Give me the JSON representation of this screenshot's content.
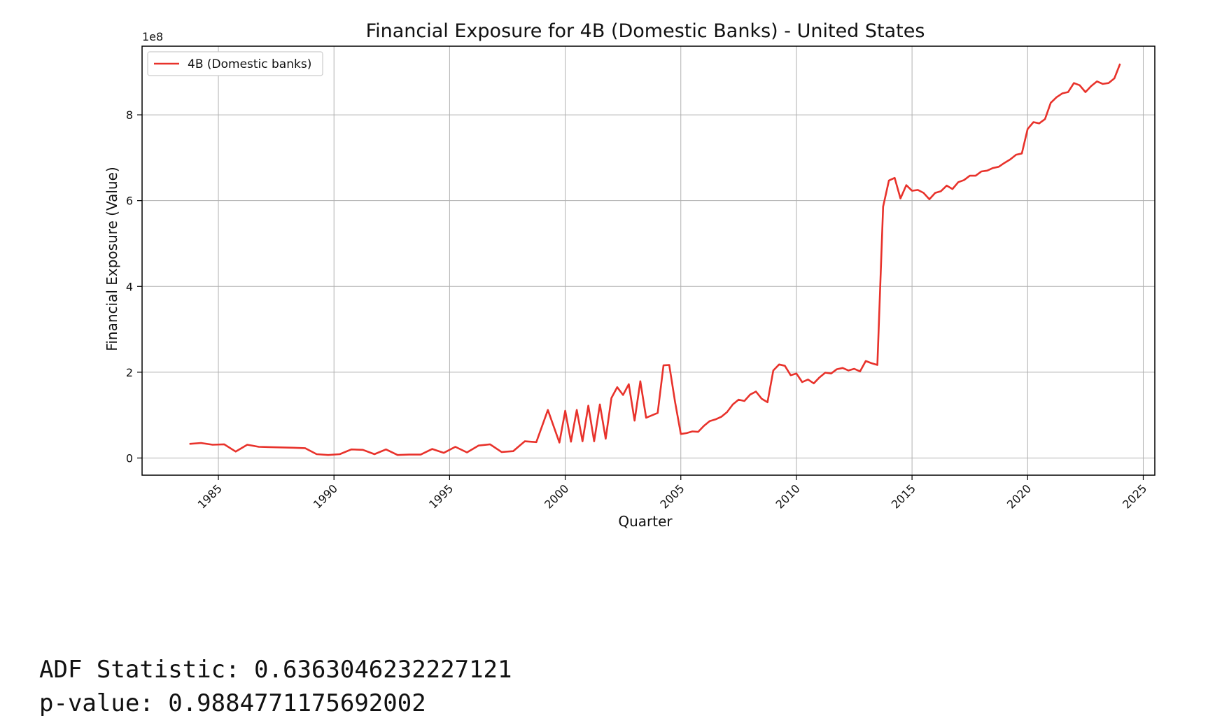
{
  "chart_data": {
    "type": "line",
    "title": "Financial Exposure for 4B (Domestic Banks) - United States",
    "xlabel": "Quarter",
    "ylabel": "Financial Exposure (Value)",
    "y_scale_label": "1e8",
    "y_multiplier": 100000000,
    "xlim": [
      1981.7,
      2025.5
    ],
    "ylim": [
      -0.4,
      9.6
    ],
    "x_ticks": [
      1985,
      1990,
      1995,
      2000,
      2005,
      2010,
      2015,
      2020,
      2025
    ],
    "y_ticks": [
      0,
      2,
      4,
      6,
      8
    ],
    "x_tick_labels": [
      "1985",
      "1990",
      "1995",
      "2000",
      "2005",
      "2010",
      "2015",
      "2020",
      "2025"
    ],
    "y_tick_labels": [
      "0",
      "2",
      "4",
      "6",
      "8"
    ],
    "grid": true,
    "legend_position": "top-left",
    "series": [
      {
        "name": "4B (Domestic banks)",
        "color": "#e8322b",
        "x": [
          1983.75,
          1984.25,
          1984.75,
          1985.25,
          1985.75,
          1986.25,
          1986.75,
          1988.25,
          1988.75,
          1989.25,
          1989.75,
          1990.25,
          1990.75,
          1991.25,
          1991.75,
          1992.25,
          1992.75,
          1993.25,
          1993.75,
          1994.25,
          1994.75,
          1995.25,
          1995.75,
          1996.25,
          1996.75,
          1997.25,
          1997.75,
          1998.25,
          1998.75,
          1999.25,
          1999.75,
          2000.0,
          2000.25,
          2000.5,
          2000.75,
          2001.0,
          2001.25,
          2001.5,
          2001.75,
          2002.0,
          2002.25,
          2002.5,
          2002.75,
          2003.0,
          2003.25,
          2003.5,
          2004.0,
          2004.25,
          2004.5,
          2004.75,
          2005.0,
          2005.25,
          2005.5,
          2005.75,
          2006.0,
          2006.25,
          2006.5,
          2006.75,
          2007.0,
          2007.25,
          2007.5,
          2007.75,
          2008.0,
          2008.25,
          2008.5,
          2008.75,
          2009.0,
          2009.25,
          2009.5,
          2009.75,
          2010.0,
          2010.25,
          2010.5,
          2010.75,
          2011.0,
          2011.25,
          2011.5,
          2011.75,
          2012.0,
          2012.25,
          2012.5,
          2012.75,
          2013.0,
          2013.25,
          2013.5,
          2013.75,
          2014.0,
          2014.25,
          2014.5,
          2014.75,
          2015.0,
          2015.25,
          2015.5,
          2015.75,
          2016.0,
          2016.25,
          2016.5,
          2016.75,
          2017.0,
          2017.25,
          2017.5,
          2017.75,
          2018.0,
          2018.25,
          2018.5,
          2018.75,
          2019.0,
          2019.25,
          2019.5,
          2019.75,
          2020.0,
          2020.25,
          2020.5,
          2020.75,
          2021.0,
          2021.25,
          2021.5,
          2021.75,
          2022.0,
          2022.25,
          2022.5,
          2022.75,
          2023.0,
          2023.25,
          2023.5,
          2023.75,
          2024.0
        ],
        "y": [
          0.33,
          0.35,
          0.31,
          0.32,
          0.15,
          0.31,
          0.26,
          0.24,
          0.23,
          0.09,
          0.07,
          0.09,
          0.2,
          0.19,
          0.09,
          0.2,
          0.07,
          0.08,
          0.08,
          0.21,
          0.12,
          0.26,
          0.13,
          0.29,
          0.32,
          0.14,
          0.16,
          0.39,
          0.37,
          1.12,
          0.36,
          1.1,
          0.38,
          1.12,
          0.39,
          1.22,
          0.39,
          1.25,
          0.45,
          1.4,
          1.65,
          1.47,
          1.72,
          0.87,
          1.79,
          0.94,
          1.05,
          2.16,
          2.17,
          1.31,
          0.56,
          0.58,
          0.62,
          0.61,
          0.75,
          0.86,
          0.9,
          0.96,
          1.07,
          1.25,
          1.36,
          1.33,
          1.48,
          1.55,
          1.38,
          1.3,
          2.04,
          2.18,
          2.15,
          1.93,
          1.97,
          1.77,
          1.83,
          1.74,
          1.88,
          1.99,
          1.97,
          2.07,
          2.1,
          2.04,
          2.08,
          2.02,
          2.26,
          2.21,
          2.17,
          5.86,
          6.47,
          6.53,
          6.05,
          6.36,
          6.23,
          6.25,
          6.18,
          6.03,
          6.18,
          6.22,
          6.35,
          6.27,
          6.43,
          6.48,
          6.58,
          6.58,
          6.68,
          6.7,
          6.76,
          6.79,
          6.88,
          6.96,
          7.07,
          7.1,
          7.67,
          7.83,
          7.8,
          7.9,
          8.28,
          8.41,
          8.5,
          8.53,
          8.74,
          8.69,
          8.53,
          8.67,
          8.78,
          8.72,
          8.74,
          8.85,
          9.19
        ]
      }
    ]
  },
  "stats": {
    "adf_line": "ADF Statistic: 0.6363046232227121",
    "p_line": "p-value: 0.9884771175692002"
  }
}
